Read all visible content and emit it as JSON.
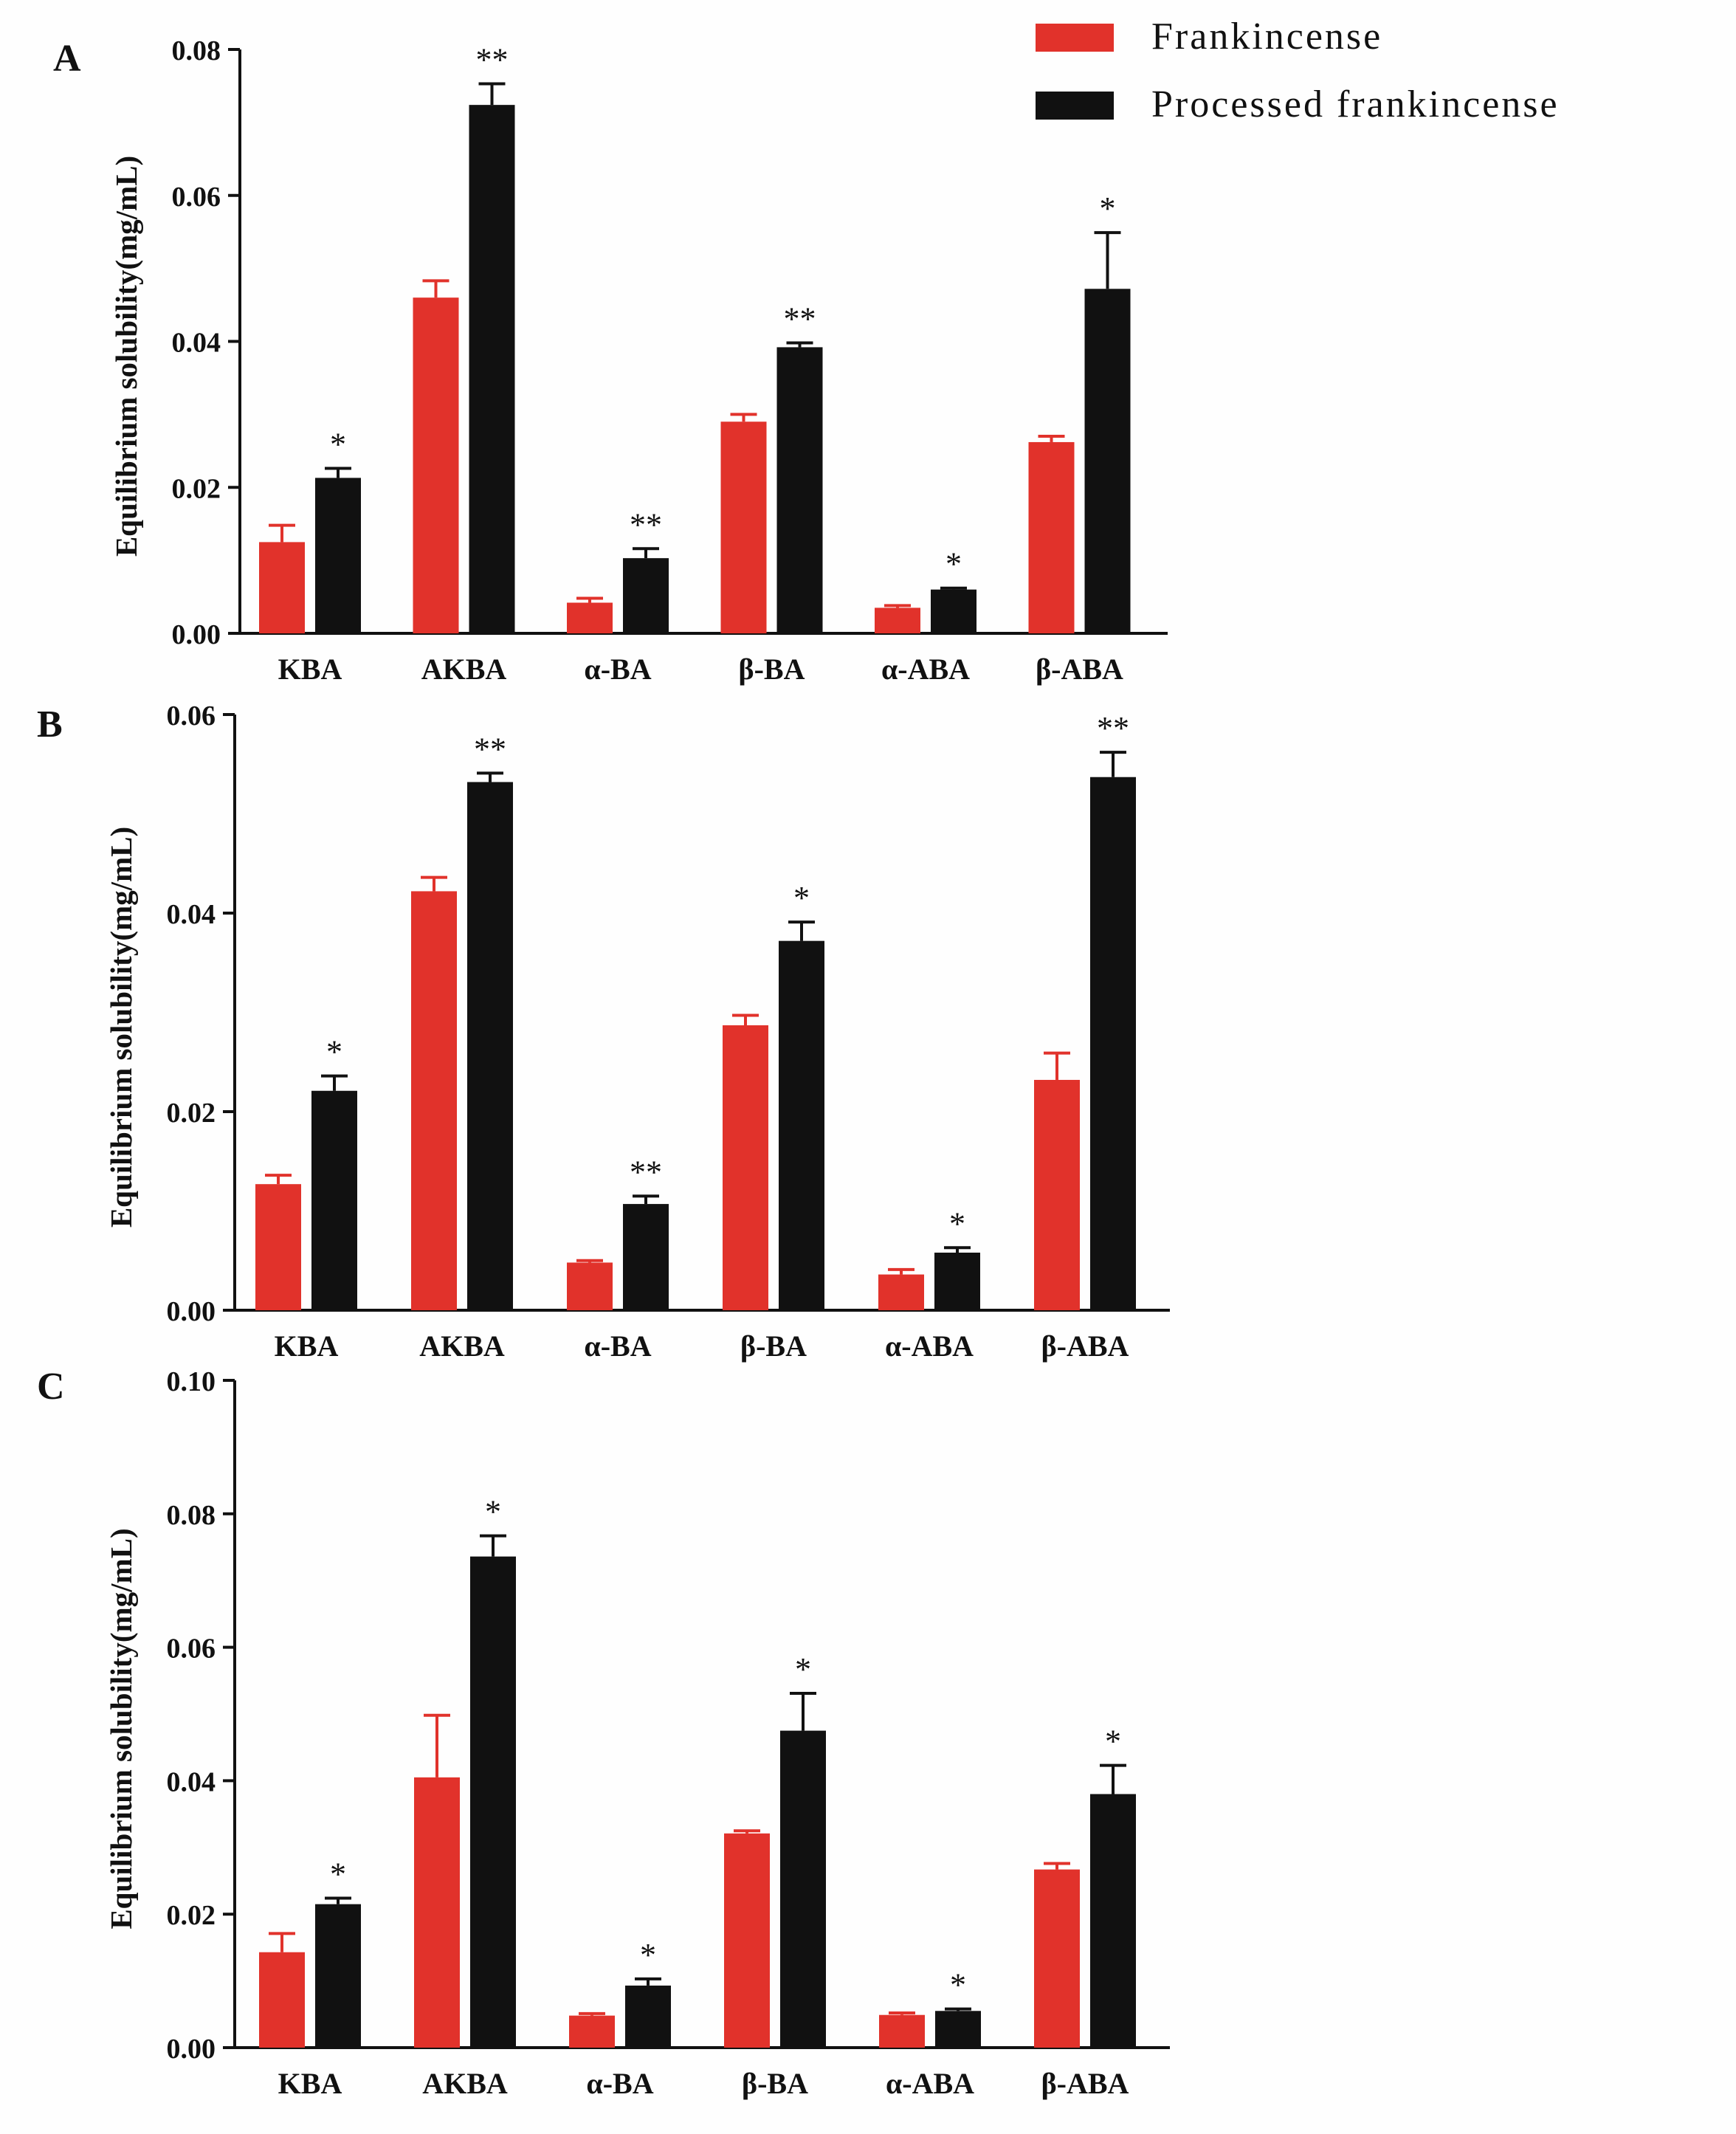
{
  "legend": {
    "series": [
      {
        "name": "Frankincense",
        "color": "#e1322b"
      },
      {
        "name": "Processed frankincense",
        "color": "#111111"
      }
    ],
    "placement": "top-right"
  },
  "colors": {
    "frankincense": "#e1322b",
    "processed": "#111111",
    "axis": "#111111"
  },
  "chart_data": [
    {
      "panel": "A",
      "type": "bar",
      "ylabel": "Equilibrium solubility(mg/mL)",
      "xlabel": "",
      "ylim": [
        0,
        0.08
      ],
      "yticks": [
        "0.00",
        "0.02",
        "0.04",
        "0.06",
        "0.08"
      ],
      "categories": [
        "KBA",
        "AKBA",
        "α-BA",
        "β-BA",
        "α-ABA",
        "β-ABA"
      ],
      "series": [
        {
          "name": "Frankincense",
          "values": [
            0.0125,
            0.046,
            0.0042,
            0.029,
            0.0035,
            0.0262
          ],
          "errors": [
            0.0023,
            0.0023,
            0.0006,
            0.001,
            0.0003,
            0.0008
          ]
        },
        {
          "name": "Processed frankincense",
          "values": [
            0.0213,
            0.0724,
            0.0103,
            0.0392,
            0.006,
            0.0472
          ],
          "errors": [
            0.0013,
            0.0029,
            0.0013,
            0.0006,
            0.0002,
            0.0077
          ]
        }
      ],
      "significance": [
        "*",
        "**",
        "**",
        "**",
        "*",
        "*"
      ]
    },
    {
      "panel": "B",
      "type": "bar",
      "ylabel": "Equilibrium solubility(mg/mL)",
      "xlabel": "",
      "ylim": [
        0,
        0.06
      ],
      "yticks": [
        "0.00",
        "0.02",
        "0.04",
        "0.06"
      ],
      "categories": [
        "KBA",
        "AKBA",
        "α-BA",
        "β-BA",
        "α-ABA",
        "β-ABA"
      ],
      "series": [
        {
          "name": "Frankincense",
          "values": [
            0.0127,
            0.0422,
            0.0048,
            0.0287,
            0.0036,
            0.0232
          ],
          "errors": [
            0.0009,
            0.0014,
            0.0002,
            0.001,
            0.0005,
            0.0027
          ]
        },
        {
          "name": "Processed frankincense",
          "values": [
            0.0221,
            0.0532,
            0.0107,
            0.0372,
            0.0058,
            0.0537
          ],
          "errors": [
            0.0015,
            0.0009,
            0.0008,
            0.0019,
            0.0005,
            0.0025
          ]
        }
      ],
      "significance": [
        "*",
        "**",
        "**",
        "*",
        "*",
        "**"
      ]
    },
    {
      "panel": "C",
      "type": "bar",
      "ylabel": "Equilibrium solubility(mg/mL)",
      "xlabel": "",
      "ylim": [
        0,
        0.1
      ],
      "yticks": [
        "0.00",
        "0.02",
        "0.04",
        "0.06",
        "0.08",
        "0.10"
      ],
      "categories": [
        "KBA",
        "AKBA",
        "α-BA",
        "β-BA",
        "α-ABA",
        "β-ABA"
      ],
      "series": [
        {
          "name": "Frankincense",
          "values": [
            0.0143,
            0.0405,
            0.0048,
            0.0321,
            0.0049,
            0.0267
          ],
          "errors": [
            0.0028,
            0.0093,
            0.0003,
            0.0004,
            0.0003,
            0.0009
          ]
        },
        {
          "name": "Processed frankincense",
          "values": [
            0.0215,
            0.0736,
            0.0093,
            0.0475,
            0.0055,
            0.038
          ],
          "errors": [
            0.0009,
            0.0031,
            0.001,
            0.0056,
            0.0003,
            0.0043
          ]
        }
      ],
      "significance": [
        "*",
        "*",
        "*",
        "*",
        "*",
        "*"
      ]
    }
  ]
}
